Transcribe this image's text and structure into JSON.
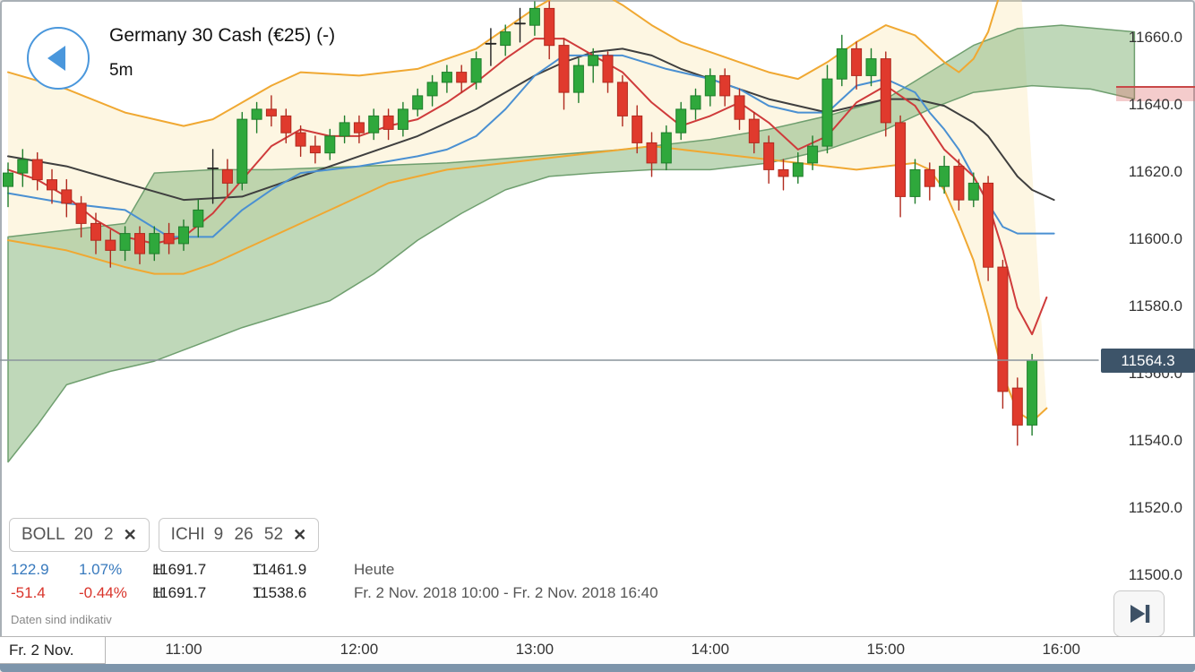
{
  "header": {
    "title": "Germany 30 Cash (€25) (-)",
    "timeframe": "5m"
  },
  "icons": {
    "back_button": "left-triangle-in-circle",
    "remove_indicator": "✕",
    "skip_to_latest": "play-to-end"
  },
  "indicators": [
    {
      "name": "BOLL",
      "params": "20 2",
      "remove_icon": "✕"
    },
    {
      "name": "ICHI",
      "params": "9 26 52",
      "remove_icon": "✕"
    }
  ],
  "stats": {
    "row1": {
      "change": "122.9",
      "change_pct": "1.07%",
      "high_label": "H",
      "high": "11691.7",
      "low_label": "T",
      "low": "11461.9",
      "period": "Heute"
    },
    "row2": {
      "change": "-51.4",
      "change_pct": "-0.44%",
      "high_label": "H",
      "high": "11691.7",
      "low_label": "T",
      "low": "11538.6",
      "period": "Fr. 2 Nov. 2018 10:00 - Fr. 2 Nov. 2018 16:40"
    }
  },
  "disclaimer": "Daten sind indikativ",
  "price_badge": {
    "value": "11564.3"
  },
  "price_axis": [
    {
      "text": "11660.0",
      "value": 11660
    },
    {
      "text": "11640.0",
      "value": 11640
    },
    {
      "text": "11620.0",
      "value": 11620
    },
    {
      "text": "11600.0",
      "value": 11600
    },
    {
      "text": "11580.0",
      "value": 11580
    },
    {
      "text": "11560.0",
      "value": 11560
    },
    {
      "text": "11540.0",
      "value": 11540
    },
    {
      "text": "11520.0",
      "value": 11520
    },
    {
      "text": "11500.0",
      "value": 11500
    }
  ],
  "time_axis": {
    "date_label": "Fr. 2 Nov.",
    "labels": [
      {
        "text": "11:00",
        "i": 12
      },
      {
        "text": "12:00",
        "i": 24
      },
      {
        "text": "13:00",
        "i": 36
      },
      {
        "text": "14:00",
        "i": 48
      },
      {
        "text": "15:00",
        "i": 60
      },
      {
        "text": "16:00",
        "i": 72
      }
    ]
  },
  "colors": {
    "up_candle": "#2fa83c",
    "up_candle_edge": "#1f7d2b",
    "down_candle": "#e03a2d",
    "down_candle_edge": "#b02a1e",
    "doji": "#222222",
    "bollinger_line": "#f0a832",
    "bollinger_fill": "rgba(247,224,160,0.30)",
    "mid_line": "#3f3f3f",
    "tenkan_line": "#cf3b3b",
    "kijun_line": "#4a90d2",
    "cloud_fill": "rgba(148,190,138,0.60)",
    "cloud_edge": "#6f9f6f",
    "price_line": "#8a949c",
    "badge_bg": "#3d5469",
    "positive": "#3779bd",
    "negative": "#d9342b",
    "axis_band_fill": "rgba(224,108,108,0.35)",
    "axis_band_edge": "#c84848",
    "bottom_bar": "#7d95ab",
    "accent_blue": "#4a97dc"
  },
  "chart_data": {
    "type": "candlestick",
    "instrument": "Germany 30 Cash",
    "interval": "5m",
    "session_range_label": "Fr. 2 Nov. 2018 10:00 - Fr. 2 Nov. 2018 16:40",
    "visible_start": "10:00",
    "step_minutes": 5,
    "y_axis": {
      "min": 11500,
      "max": 11660,
      "tick_step": 20
    },
    "current_price": 11564.3,
    "legend": [
      "BOLL 20 2",
      "ICHI 9 26 52"
    ],
    "candles_ohlc": [
      [
        11616,
        11623,
        11610,
        11620
      ],
      [
        11620,
        11627,
        11616,
        11624
      ],
      [
        11624,
        11626,
        11615,
        11618
      ],
      [
        11618,
        11621,
        11611,
        11615
      ],
      [
        11615,
        11618,
        11607,
        11611
      ],
      [
        11611,
        11613,
        11601,
        11605
      ],
      [
        11605,
        11608,
        11596,
        11600
      ],
      [
        11600,
        11603,
        11592,
        11597
      ],
      [
        11597,
        11604,
        11594,
        11602
      ],
      [
        11602,
        11604,
        11593,
        11596
      ],
      [
        11596,
        11604,
        11594,
        11602
      ],
      [
        11602,
        11605,
        11596,
        11599
      ],
      [
        11599,
        11606,
        11597,
        11604
      ],
      [
        11604,
        11612,
        11601,
        11609
      ],
      [
        11621,
        11627,
        11611,
        11621.4
      ],
      [
        11621,
        11624,
        11613,
        11617
      ],
      [
        11617,
        11638,
        11615,
        11636
      ],
      [
        11636,
        11641,
        11632,
        11639
      ],
      [
        11639,
        11643,
        11634,
        11637
      ],
      [
        11637,
        11639,
        11629,
        11632
      ],
      [
        11632,
        11634,
        11625,
        11628
      ],
      [
        11628,
        11631,
        11623,
        11626
      ],
      [
        11626,
        11633,
        11624,
        11631
      ],
      [
        11631,
        11637,
        11629,
        11635
      ],
      [
        11635,
        11637,
        11629,
        11632
      ],
      [
        11632,
        11639,
        11630,
        11637
      ],
      [
        11637,
        11639,
        11630,
        11633
      ],
      [
        11633,
        11641,
        11631,
        11639
      ],
      [
        11639,
        11645,
        11637,
        11643
      ],
      [
        11643,
        11649,
        11640,
        11647
      ],
      [
        11647,
        11652,
        11644,
        11650
      ],
      [
        11650,
        11652,
        11644,
        11647
      ],
      [
        11647,
        11656,
        11645,
        11654
      ],
      [
        11658,
        11663,
        11652,
        11658.5
      ],
      [
        11658,
        11664,
        11655,
        11662
      ],
      [
        11664,
        11669,
        11659,
        11664.5
      ],
      [
        11664,
        11671,
        11661,
        11669
      ],
      [
        11669,
        11671,
        11654,
        11658
      ],
      [
        11658,
        11660,
        11639,
        11644
      ],
      [
        11644,
        11654,
        11641,
        11652
      ],
      [
        11652,
        11657,
        11647,
        11655
      ],
      [
        11655,
        11656,
        11644,
        11647
      ],
      [
        11647,
        11649,
        11634,
        11637
      ],
      [
        11637,
        11640,
        11626,
        11629
      ],
      [
        11629,
        11632,
        11619,
        11623
      ],
      [
        11623,
        11634,
        11621,
        11632
      ],
      [
        11632,
        11641,
        11630,
        11639
      ],
      [
        11639,
        11645,
        11636,
        11643
      ],
      [
        11643,
        11651,
        11640,
        11649
      ],
      [
        11649,
        11651,
        11640,
        11643
      ],
      [
        11643,
        11645,
        11633,
        11636
      ],
      [
        11636,
        11638,
        11626,
        11629
      ],
      [
        11629,
        11631,
        11617,
        11621
      ],
      [
        11621,
        11624,
        11615,
        11619
      ],
      [
        11619,
        11626,
        11617,
        11623
      ],
      [
        11623,
        11631,
        11621,
        11628
      ],
      [
        11628,
        11652,
        11626,
        11648
      ],
      [
        11648,
        11661,
        11646,
        11657
      ],
      [
        11657,
        11659,
        11645,
        11649
      ],
      [
        11649,
        11657,
        11646,
        11654
      ],
      [
        11654,
        11656,
        11631,
        11635
      ],
      [
        11635,
        11637,
        11607,
        11613
      ],
      [
        11613,
        11624,
        11611,
        11621
      ],
      [
        11621,
        11623,
        11612,
        11616
      ],
      [
        11616,
        11625,
        11614,
        11622
      ],
      [
        11622,
        11624,
        11609,
        11612
      ],
      [
        11612,
        11620,
        11610,
        11617
      ],
      [
        11617,
        11619,
        11588,
        11592
      ],
      [
        11592,
        11594,
        11550,
        11555
      ],
      [
        11556,
        11559,
        11539,
        11545
      ],
      [
        11545,
        11566,
        11542,
        11564.3
      ]
    ],
    "overlays": {
      "bollinger_upper": [
        [
          0,
          11650
        ],
        [
          4,
          11645
        ],
        [
          8,
          11638
        ],
        [
          12,
          11634
        ],
        [
          14,
          11636
        ],
        [
          16,
          11641
        ],
        [
          18,
          11646
        ],
        [
          20,
          11650
        ],
        [
          24,
          11649
        ],
        [
          28,
          11651
        ],
        [
          32,
          11657
        ],
        [
          34,
          11663
        ],
        [
          36,
          11669
        ],
        [
          38,
          11674
        ],
        [
          40,
          11675
        ],
        [
          42,
          11670
        ],
        [
          44,
          11664
        ],
        [
          46,
          11659
        ],
        [
          48,
          11656
        ],
        [
          50,
          11653
        ],
        [
          52,
          11650
        ],
        [
          54,
          11648
        ],
        [
          56,
          11653
        ],
        [
          58,
          11659
        ],
        [
          60,
          11664
        ],
        [
          62,
          11661
        ],
        [
          64,
          11653
        ],
        [
          65,
          11650
        ],
        [
          66,
          11654
        ],
        [
          67,
          11662
        ],
        [
          68,
          11676
        ],
        [
          69,
          11692
        ]
      ],
      "bollinger_lower": [
        [
          0,
          11600
        ],
        [
          4,
          11597
        ],
        [
          8,
          11592
        ],
        [
          10,
          11590
        ],
        [
          12,
          11590
        ],
        [
          14,
          11593
        ],
        [
          16,
          11597
        ],
        [
          18,
          11601
        ],
        [
          20,
          11605
        ],
        [
          22,
          11609
        ],
        [
          24,
          11613
        ],
        [
          26,
          11617
        ],
        [
          28,
          11619
        ],
        [
          30,
          11621
        ],
        [
          32,
          11622
        ],
        [
          34,
          11623
        ],
        [
          36,
          11624
        ],
        [
          40,
          11626
        ],
        [
          44,
          11628
        ],
        [
          48,
          11626
        ],
        [
          52,
          11624
        ],
        [
          56,
          11622
        ],
        [
          58,
          11621
        ],
        [
          60,
          11622
        ],
        [
          62,
          11623
        ],
        [
          63,
          11621
        ],
        [
          64,
          11615
        ],
        [
          65,
          11605
        ],
        [
          66,
          11594
        ],
        [
          67,
          11578
        ],
        [
          68,
          11560
        ],
        [
          69,
          11549
        ],
        [
          70,
          11546
        ],
        [
          71,
          11550
        ]
      ],
      "bollinger_mid": [
        [
          0,
          11625
        ],
        [
          4,
          11622
        ],
        [
          8,
          11617
        ],
        [
          12,
          11612
        ],
        [
          16,
          11613
        ],
        [
          20,
          11619
        ],
        [
          24,
          11625
        ],
        [
          28,
          11631
        ],
        [
          32,
          11639
        ],
        [
          36,
          11649
        ],
        [
          38,
          11653
        ],
        [
          40,
          11656
        ],
        [
          42,
          11657
        ],
        [
          44,
          11655
        ],
        [
          46,
          11651
        ],
        [
          48,
          11648
        ],
        [
          50,
          11645
        ],
        [
          52,
          11642
        ],
        [
          54,
          11640
        ],
        [
          56,
          11638
        ],
        [
          58,
          11640
        ],
        [
          60,
          11642
        ],
        [
          62,
          11642
        ],
        [
          64,
          11640
        ],
        [
          66,
          11635
        ],
        [
          67,
          11631
        ],
        [
          68,
          11625
        ],
        [
          69,
          11619
        ],
        [
          70,
          11615
        ],
        [
          71.5,
          11612
        ]
      ],
      "ichimoku_tenkan": [
        [
          0,
          11621
        ],
        [
          2,
          11618
        ],
        [
          4,
          11613
        ],
        [
          6,
          11606
        ],
        [
          8,
          11601
        ],
        [
          10,
          11599
        ],
        [
          12,
          11601
        ],
        [
          14,
          11608
        ],
        [
          16,
          11618
        ],
        [
          18,
          11628
        ],
        [
          20,
          11633
        ],
        [
          22,
          11631
        ],
        [
          24,
          11631
        ],
        [
          26,
          11634
        ],
        [
          28,
          11636
        ],
        [
          30,
          11641
        ],
        [
          32,
          11647
        ],
        [
          34,
          11654
        ],
        [
          36,
          11660
        ],
        [
          38,
          11660
        ],
        [
          40,
          11655
        ],
        [
          42,
          11650
        ],
        [
          44,
          11641
        ],
        [
          46,
          11634
        ],
        [
          48,
          11637
        ],
        [
          50,
          11641
        ],
        [
          52,
          11635
        ],
        [
          54,
          11627
        ],
        [
          56,
          11631
        ],
        [
          58,
          11641
        ],
        [
          60,
          11646
        ],
        [
          62,
          11640
        ],
        [
          64,
          11627
        ],
        [
          66,
          11619
        ],
        [
          67,
          11611
        ],
        [
          68,
          11597
        ],
        [
          69,
          11580
        ],
        [
          70,
          11572
        ],
        [
          71,
          11583
        ]
      ],
      "ichimoku_kijun": [
        [
          0,
          11614
        ],
        [
          4,
          11611
        ],
        [
          8,
          11609
        ],
        [
          11,
          11601
        ],
        [
          14,
          11601
        ],
        [
          16,
          11609
        ],
        [
          18,
          11615
        ],
        [
          20,
          11620
        ],
        [
          24,
          11622
        ],
        [
          28,
          11625
        ],
        [
          30,
          11627
        ],
        [
          32,
          11631
        ],
        [
          34,
          11639
        ],
        [
          36,
          11649
        ],
        [
          38,
          11655
        ],
        [
          42,
          11655
        ],
        [
          45,
          11651
        ],
        [
          48,
          11648
        ],
        [
          50,
          11645
        ],
        [
          52,
          11640
        ],
        [
          54,
          11638
        ],
        [
          56,
          11638
        ],
        [
          58,
          11646
        ],
        [
          60,
          11648
        ],
        [
          62,
          11644
        ],
        [
          63,
          11638
        ],
        [
          64,
          11633
        ],
        [
          65,
          11627
        ],
        [
          66,
          11619
        ],
        [
          67,
          11611
        ],
        [
          68,
          11604
        ],
        [
          69,
          11602
        ],
        [
          71.5,
          11602
        ]
      ],
      "ichimoku_span_a": [
        [
          0,
          11601
        ],
        [
          4,
          11603
        ],
        [
          8,
          11605
        ],
        [
          10,
          11620
        ],
        [
          14,
          11621
        ],
        [
          18,
          11621
        ],
        [
          24,
          11622
        ],
        [
          30,
          11623
        ],
        [
          36,
          11625
        ],
        [
          42,
          11627
        ],
        [
          48,
          11630
        ],
        [
          52,
          11633
        ],
        [
          56,
          11637
        ],
        [
          60,
          11642
        ],
        [
          63,
          11650
        ],
        [
          66,
          11658
        ],
        [
          69,
          11663
        ],
        [
          72,
          11664
        ],
        [
          77,
          11662
        ]
      ],
      "ichimoku_span_b": [
        [
          0,
          11534
        ],
        [
          2,
          11545
        ],
        [
          4,
          11557
        ],
        [
          7,
          11561
        ],
        [
          10,
          11564
        ],
        [
          13,
          11569
        ],
        [
          16,
          11574
        ],
        [
          19,
          11578
        ],
        [
          22,
          11582
        ],
        [
          25,
          11590
        ],
        [
          28,
          11600
        ],
        [
          31,
          11608
        ],
        [
          34,
          11615
        ],
        [
          37,
          11619
        ],
        [
          40,
          11620
        ],
        [
          44,
          11621
        ],
        [
          48,
          11621
        ],
        [
          52,
          11623
        ],
        [
          56,
          11627
        ],
        [
          60,
          11633
        ],
        [
          63,
          11639
        ],
        [
          66,
          11644
        ],
        [
          70,
          11646
        ],
        [
          74,
          11645
        ],
        [
          77,
          11642
        ]
      ]
    }
  }
}
